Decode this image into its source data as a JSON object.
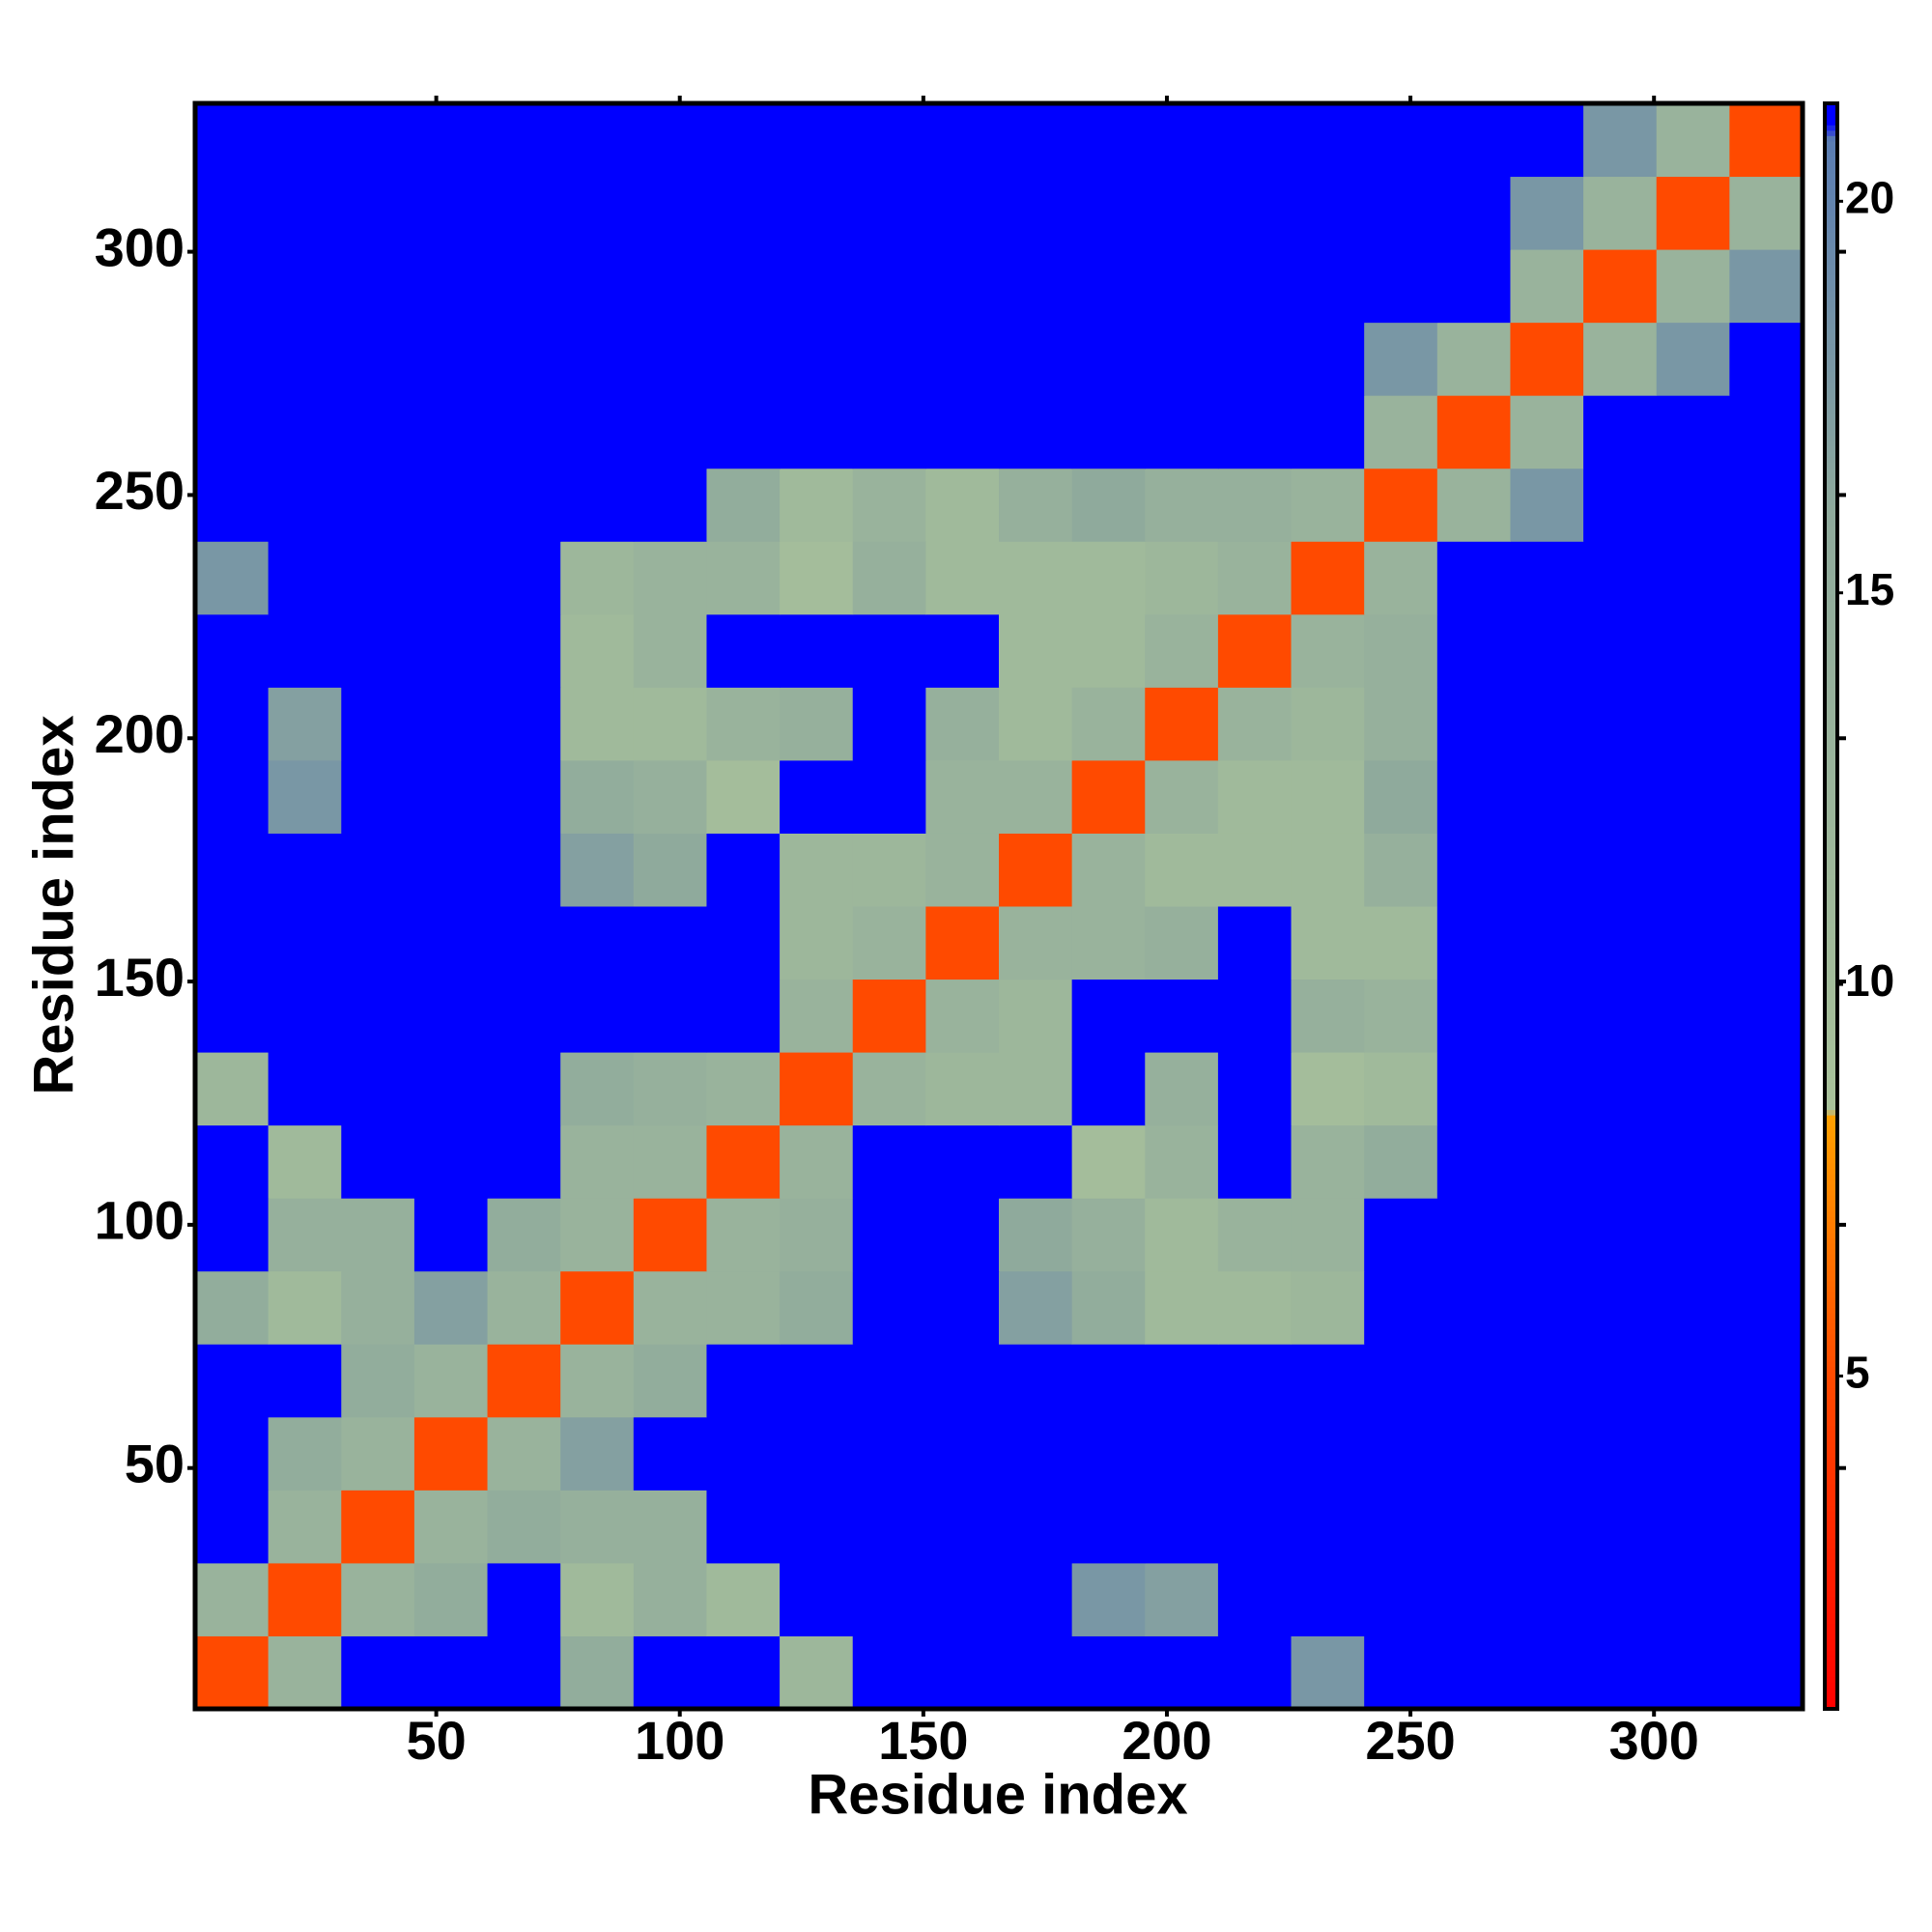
{
  "chart_data": {
    "type": "heatmap",
    "x_label": "Residue index",
    "y_label": "Residue index",
    "xlim": [
      0.5,
      330.5
    ],
    "ylim": [
      0.5,
      330.5
    ],
    "xticks": [
      50,
      100,
      150,
      200,
      250,
      300
    ],
    "yticks": [
      50,
      100,
      150,
      200,
      250,
      300
    ],
    "bins": [
      0.5,
      15.5,
      30.5,
      45.5,
      60.5,
      75.5,
      90.5,
      105.5,
      120.5,
      135.5,
      150.5,
      165.5,
      180.5,
      195.5,
      210.5,
      225.5,
      240.5,
      255.5,
      270.5,
      285.5,
      300.5,
      315.5,
      330.5
    ],
    "zlim": [
      0.75,
      21.25
    ],
    "colorbar_ticks": [
      5,
      10,
      15,
      20
    ],
    "colorscale": [
      [
        0.75,
        "#ff0000"
      ],
      [
        5,
        "#ff4a00"
      ],
      [
        8.3,
        "#ffa000"
      ],
      [
        8.4,
        "#a9c29b"
      ],
      [
        16,
        "#8faa9c"
      ],
      [
        20.8,
        "#5a7cb2"
      ],
      [
        21,
        "#0000ff"
      ],
      [
        21.25,
        "#0000ff"
      ]
    ],
    "background": "#0000ff",
    "z": [
      [
        5,
        13,
        21,
        21,
        21,
        15,
        21,
        21,
        12,
        21,
        21,
        21,
        21,
        21,
        21,
        18,
        21,
        21,
        21,
        21,
        21,
        21
      ],
      [
        13,
        5,
        13,
        15,
        21,
        11,
        14,
        11,
        21,
        21,
        21,
        21,
        18,
        17,
        21,
        21,
        21,
        21,
        21,
        21,
        21,
        21
      ],
      [
        21,
        13,
        5,
        13,
        15,
        14,
        14,
        21,
        21,
        21,
        21,
        21,
        21,
        21,
        21,
        21,
        21,
        21,
        21,
        21,
        21,
        21
      ],
      [
        21,
        15,
        13,
        5,
        13,
        17,
        21,
        21,
        21,
        21,
        21,
        21,
        21,
        21,
        21,
        21,
        21,
        21,
        21,
        21,
        21,
        21
      ],
      [
        21,
        21,
        15,
        13,
        5,
        13,
        15,
        21,
        21,
        21,
        21,
        21,
        21,
        21,
        21,
        21,
        21,
        21,
        21,
        21,
        21,
        21
      ],
      [
        15,
        11,
        14,
        17,
        13,
        5,
        13,
        13,
        15,
        21,
        21,
        17,
        15,
        11,
        11,
        12,
        21,
        21,
        21,
        21,
        21,
        21
      ],
      [
        21,
        14,
        14,
        21,
        15,
        13,
        5,
        13,
        14,
        21,
        21,
        16,
        14,
        11,
        13,
        13,
        21,
        21,
        21,
        21,
        21,
        21
      ],
      [
        21,
        11,
        21,
        21,
        21,
        13,
        13,
        5,
        13,
        21,
        21,
        21,
        10,
        13,
        21,
        13,
        15,
        21,
        21,
        21,
        21,
        21
      ],
      [
        12,
        21,
        21,
        21,
        21,
        15,
        14,
        13,
        5,
        13,
        12,
        12,
        21,
        14,
        21,
        10,
        11,
        21,
        21,
        21,
        21,
        21
      ],
      [
        21,
        21,
        21,
        21,
        21,
        21,
        21,
        21,
        13,
        5,
        13,
        12,
        21,
        21,
        21,
        14,
        13,
        21,
        21,
        21,
        21,
        21
      ],
      [
        21,
        21,
        21,
        21,
        21,
        21,
        21,
        21,
        12,
        13,
        5,
        13,
        13,
        14,
        21,
        11,
        11,
        21,
        21,
        21,
        21,
        21
      ],
      [
        21,
        21,
        21,
        21,
        21,
        17,
        16,
        21,
        12,
        12,
        13,
        5,
        13,
        11,
        11,
        11,
        14,
        21,
        21,
        21,
        21,
        21
      ],
      [
        21,
        18,
        21,
        21,
        21,
        15,
        14,
        10,
        21,
        21,
        13,
        13,
        5,
        13,
        11,
        11,
        16,
        21,
        21,
        21,
        21,
        21
      ],
      [
        21,
        17,
        21,
        21,
        21,
        11,
        11,
        13,
        14,
        21,
        14,
        11,
        13,
        5,
        13,
        12,
        14,
        21,
        21,
        21,
        21,
        21
      ],
      [
        21,
        21,
        21,
        21,
        21,
        11,
        13,
        21,
        21,
        21,
        21,
        11,
        11,
        13,
        5,
        13,
        14,
        21,
        21,
        21,
        21,
        21
      ],
      [
        18,
        21,
        21,
        21,
        21,
        12,
        13,
        13,
        10,
        14,
        11,
        11,
        11,
        12,
        13,
        5,
        13,
        21,
        21,
        21,
        21,
        21
      ],
      [
        21,
        21,
        21,
        21,
        21,
        21,
        21,
        15,
        11,
        13,
        11,
        14,
        16,
        14,
        14,
        13,
        5,
        13,
        18,
        21,
        21,
        21
      ],
      [
        21,
        21,
        21,
        21,
        21,
        21,
        21,
        21,
        21,
        21,
        21,
        21,
        21,
        21,
        21,
        21,
        13,
        5,
        13,
        21,
        21,
        21
      ],
      [
        21,
        21,
        21,
        21,
        21,
        21,
        21,
        21,
        21,
        21,
        21,
        21,
        21,
        21,
        21,
        21,
        18,
        13,
        5,
        13,
        18,
        21
      ],
      [
        21,
        21,
        21,
        21,
        21,
        21,
        21,
        21,
        21,
        21,
        21,
        21,
        21,
        21,
        21,
        21,
        21,
        21,
        13,
        5,
        13,
        18
      ],
      [
        21,
        21,
        21,
        21,
        21,
        21,
        21,
        21,
        21,
        21,
        21,
        21,
        21,
        21,
        21,
        21,
        21,
        21,
        18,
        13,
        5,
        13
      ],
      [
        21,
        21,
        21,
        21,
        21,
        21,
        21,
        21,
        21,
        21,
        21,
        21,
        21,
        21,
        21,
        21,
        21,
        21,
        21,
        18,
        13,
        5
      ]
    ]
  }
}
